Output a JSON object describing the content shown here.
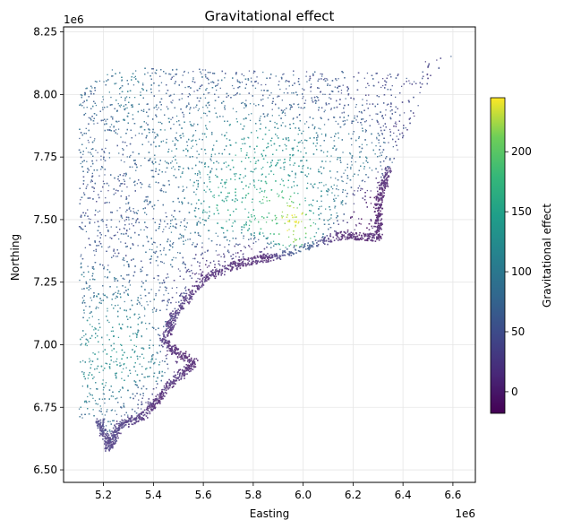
{
  "chart_data": {
    "type": "scatter",
    "title": "Gravitational effect",
    "xlabel": "Easting",
    "ylabel": "Northing",
    "x_offset_label": "1e6",
    "y_offset_label": "1e6",
    "xlim": [
      5.04,
      6.69
    ],
    "ylim": [
      6.45,
      8.27
    ],
    "xticks": [
      5.2,
      5.4,
      5.6,
      5.8,
      6.0,
      6.2,
      6.4,
      6.6
    ],
    "xtick_labels": [
      "5.2",
      "5.4",
      "5.6",
      "5.8",
      "6.0",
      "6.2",
      "6.4",
      "6.6"
    ],
    "yticks": [
      6.5,
      6.75,
      7.0,
      7.25,
      7.5,
      7.75,
      8.0,
      8.25
    ],
    "ytick_labels": [
      "6.50",
      "6.75",
      "7.00",
      "7.25",
      "7.50",
      "7.75",
      "8.00",
      "8.25"
    ],
    "grid": true,
    "colorbar": {
      "label": "Gravitational effect",
      "min": -18,
      "max": 245,
      "ticks": [
        0,
        50,
        100,
        150,
        200
      ],
      "tick_labels": [
        "0",
        "50",
        "100",
        "150",
        "200"
      ],
      "colormap": "viridis"
    },
    "survey_points": [
      {
        "x": 5.1,
        "y": 8.0,
        "value": 75
      },
      {
        "x": 5.15,
        "y": 7.8,
        "value": 70
      },
      {
        "x": 5.2,
        "y": 7.6,
        "value": 55
      },
      {
        "x": 5.25,
        "y": 7.4,
        "value": 60
      },
      {
        "x": 5.15,
        "y": 7.2,
        "value": 90
      },
      {
        "x": 5.2,
        "y": 7.05,
        "value": 120
      },
      {
        "x": 5.3,
        "y": 6.95,
        "value": 130
      },
      {
        "x": 5.4,
        "y": 6.9,
        "value": 110
      },
      {
        "x": 5.45,
        "y": 6.8,
        "value": 10
      },
      {
        "x": 5.5,
        "y": 6.95,
        "value": 0
      },
      {
        "x": 5.3,
        "y": 8.03,
        "value": 90
      },
      {
        "x": 5.5,
        "y": 8.05,
        "value": 60
      },
      {
        "x": 5.7,
        "y": 8.08,
        "value": 70
      },
      {
        "x": 5.9,
        "y": 8.05,
        "value": 65
      },
      {
        "x": 6.1,
        "y": 8.05,
        "value": 55
      },
      {
        "x": 6.3,
        "y": 8.02,
        "value": 50
      },
      {
        "x": 6.45,
        "y": 7.9,
        "value": 40
      },
      {
        "x": 5.6,
        "y": 7.8,
        "value": 100
      },
      {
        "x": 5.8,
        "y": 7.75,
        "value": 140
      },
      {
        "x": 6.0,
        "y": 7.7,
        "value": 120
      },
      {
        "x": 6.2,
        "y": 7.75,
        "value": 90
      },
      {
        "x": 5.7,
        "y": 7.55,
        "value": 150
      },
      {
        "x": 5.85,
        "y": 7.52,
        "value": 180
      },
      {
        "x": 5.95,
        "y": 7.5,
        "value": 240
      },
      {
        "x": 6.1,
        "y": 7.55,
        "value": 110
      },
      {
        "x": 6.25,
        "y": 7.5,
        "value": 0
      },
      {
        "x": 6.3,
        "y": 7.55,
        "value": -10
      },
      {
        "x": 6.2,
        "y": 7.45,
        "value": -5
      },
      {
        "x": 5.5,
        "y": 7.4,
        "value": 80
      },
      {
        "x": 5.4,
        "y": 7.55,
        "value": 70
      },
      {
        "x": 5.6,
        "y": 7.3,
        "value": 20
      },
      {
        "x": 5.8,
        "y": 7.35,
        "value": 10
      }
    ]
  }
}
